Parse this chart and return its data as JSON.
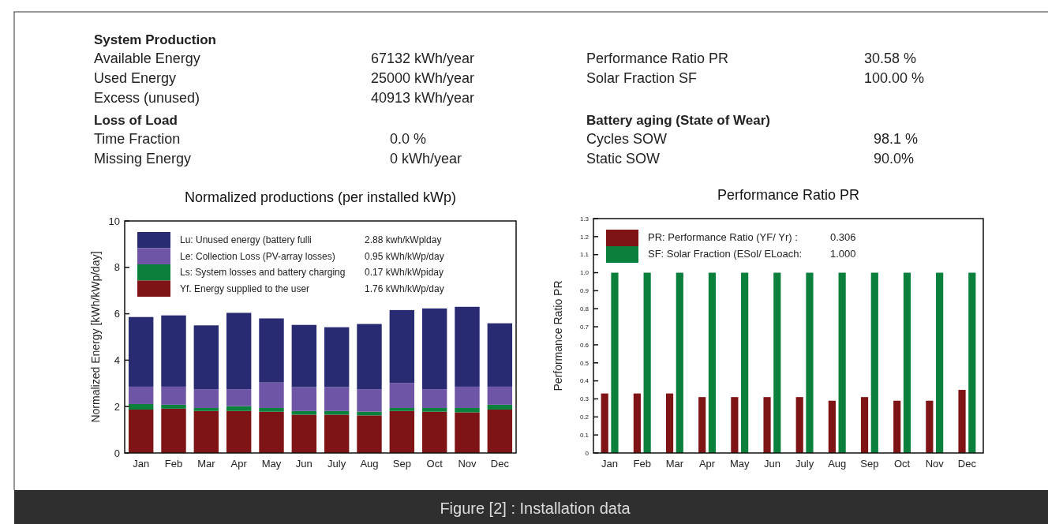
{
  "chart_data": [
    {
      "type": "other",
      "annotations": [
        "System Production",
        "Available Energy",
        "67132 kWh/year",
        "Used Energy",
        "25000 kWh/year",
        "Excess (unused)",
        "40913 kWh/year",
        "Loss of Load",
        "Time Fraction",
        "0.0 %",
        "Missing Energy",
        "0 kWh/year",
        "Performance Ratio PR",
        "30.58 %",
        "Solar Fraction SF",
        "100.00 %",
        "Battery aging (State of Wear)",
        "Cycles SOW",
        "98.1 %",
        "Static SOW",
        "90.0%",
        "Figure [2] : Installation data"
      ]
    },
    {
      "type": "bar",
      "title": "Normalized productions (per installed kWp)",
      "ylabel": "Normalized Energy [kWh/kWp/day]",
      "stacked": true,
      "legend": "top left",
      "categories": [
        "Jan",
        "Feb",
        "Mar",
        "Apr",
        "May",
        "Jun",
        "July",
        "Aug",
        "Sep",
        "Oct",
        "Nov",
        "Dec"
      ],
      "ylim": [
        0,
        10
      ],
      "yticks": [
        0,
        2,
        4,
        6,
        8,
        10
      ],
      "annotations": [
        "1.76 kWh/kWp/day",
        "0.17 kWh/kWpiday",
        "0.95 kWh/kWp/day",
        "2.88 kwh/kWplday"
      ],
      "series": [
        {
          "name": "Yf. Energy supplied to the user",
          "color": "#7f1416",
          "values": [
            1.87,
            1.91,
            1.81,
            1.81,
            1.78,
            1.65,
            1.65,
            1.62,
            1.81,
            1.78,
            1.75,
            1.87
          ]
        },
        {
          "name": "Ls: System losses and battery charging",
          "color": "#0b7f3c",
          "values": [
            0.24,
            0.17,
            0.13,
            0.21,
            0.16,
            0.16,
            0.16,
            0.16,
            0.13,
            0.16,
            0.19,
            0.21
          ]
        },
        {
          "name": "Le: Collection Loss (PV-array losses)",
          "color": "#6f55a5",
          "values": [
            0.75,
            0.78,
            0.81,
            0.73,
            1.1,
            1.03,
            1.03,
            0.97,
            1.08,
            0.81,
            0.92,
            0.78
          ]
        },
        {
          "name": "Lu: Unused energy (battery fulli",
          "color": "#282a72",
          "values": [
            3.0,
            3.07,
            2.75,
            3.29,
            2.76,
            2.68,
            2.58,
            2.81,
            3.14,
            3.48,
            3.44,
            2.73
          ]
        }
      ]
    },
    {
      "type": "bar",
      "title": "Performance Ratio PR",
      "ylabel": "Performance Ratio PR",
      "legend": "top left",
      "categories": [
        "Jan",
        "Feb",
        "Mar",
        "Apr",
        "May",
        "Jun",
        "July",
        "Aug",
        "Sep",
        "Oct",
        "Nov",
        "Dec"
      ],
      "ylim": [
        0,
        1.3
      ],
      "yticks": [
        0,
        0.1,
        0.2,
        0.3,
        0.4,
        0.5,
        0.6,
        0.7,
        0.8,
        0.9,
        {
          "value": 1,
          "label": "1.0"
        },
        1.1,
        1.2,
        1.3
      ],
      "annotations": [
        "0.306",
        "1.000"
      ],
      "series": [
        {
          "name": "PR: Performance Ratio (YF/ Yr) :",
          "color": "#7f1416",
          "values": [
            0.33,
            0.33,
            0.33,
            0.31,
            0.31,
            0.31,
            0.31,
            0.29,
            0.31,
            0.29,
            0.29,
            0.35
          ]
        },
        {
          "name": "SF: Solar Fraction (ESol/ ELoach:",
          "color": "#0b7f3c",
          "values": [
            1,
            1,
            1,
            1,
            1,
            1,
            1,
            1,
            1,
            1,
            1,
            1
          ]
        }
      ]
    }
  ]
}
